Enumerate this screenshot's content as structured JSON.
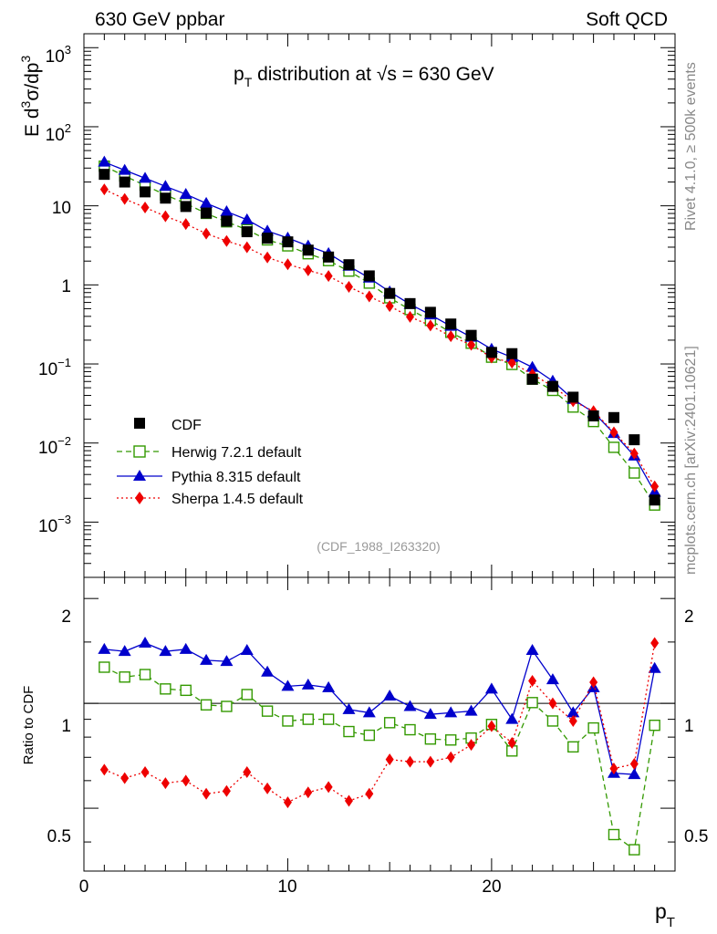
{
  "header": {
    "left": "630 GeV ppbar",
    "right": "Soft QCD"
  },
  "side_labels": {
    "rivet": "Rivet 4.1.0, ≥ 500k events",
    "mcplots": "mcplots.cern.ch [arXiv:2401.10621]"
  },
  "analysis_id": "(CDF_1988_I263320)",
  "colors": {
    "cdf": "#000000",
    "herwig": "#339900",
    "pythia": "#0000cc",
    "sherpa": "#ee0000"
  },
  "chart_data": {
    "type": "line",
    "title": {
      "prefix": "p",
      "sub": "T",
      "rest": " distribution at ",
      "sqrt": "√",
      "s_eq": "s = 630 GeV"
    },
    "xlabel": {
      "main": "p",
      "sub": "T"
    },
    "ylabel": {
      "main": "E  d",
      "sup1": "3",
      "mid": "σ/dp",
      "sup2": "3"
    },
    "ratio_ylabel": "Ratio to CDF",
    "xlim": [
      0,
      29
    ],
    "ylim": [
      0.0002,
      1500
    ],
    "ratio_ylim": [
      0.33,
      2.3
    ],
    "x_ticks": [
      "0",
      "10",
      "20"
    ],
    "y_ticks": [
      {
        "base": "10",
        "exp": "3"
      },
      {
        "base": "10",
        "exp": "2"
      },
      {
        "base": "10",
        "exp": ""
      },
      {
        "base": "1",
        "exp": ""
      },
      {
        "base": "10",
        "exp": "−1"
      },
      {
        "base": "10",
        "exp": "−2"
      },
      {
        "base": "10",
        "exp": "−3"
      }
    ],
    "ratio_ticks": [
      "2",
      "1",
      "0.5"
    ],
    "x": [
      1,
      2,
      3,
      4,
      5,
      6,
      7,
      8,
      9,
      10,
      11,
      12,
      13,
      14,
      15,
      16,
      17,
      18,
      19,
      20,
      21,
      22,
      23,
      24,
      25,
      26,
      27,
      28
    ],
    "series": [
      {
        "name": "CDF",
        "label": "CDF",
        "key": "cdf",
        "marker": "square",
        "values": [
          25,
          20,
          15,
          12.5,
          9.8,
          8.1,
          6.4,
          4.7,
          3.9,
          3.5,
          2.75,
          2.25,
          1.8,
          1.3,
          0.78,
          0.58,
          0.45,
          0.32,
          0.23,
          0.14,
          0.135,
          0.064,
          0.052,
          0.038,
          0.022,
          0.021,
          0.011,
          0.0019
        ]
      },
      {
        "name": "Herwig",
        "label": "Herwig 7.2.1 default",
        "key": "herwig",
        "marker": "open-square",
        "dash": "6,4",
        "ratio": [
          1.27,
          1.19,
          1.21,
          1.1,
          1.09,
          0.99,
          0.98,
          1.06,
          0.95,
          0.89,
          0.9,
          0.9,
          0.83,
          0.81,
          0.88,
          0.84,
          0.79,
          0.785,
          0.795,
          0.87,
          0.73,
          1.005,
          0.89,
          0.75,
          0.85,
          0.42,
          0.38,
          0.865
        ]
      },
      {
        "name": "Pythia",
        "label": "Pythia 8.315 default",
        "key": "pythia",
        "marker": "triangle",
        "ratio": [
          1.43,
          1.41,
          1.49,
          1.41,
          1.43,
          1.33,
          1.32,
          1.42,
          1.23,
          1.12,
          1.13,
          1.11,
          0.96,
          0.94,
          1.05,
          0.98,
          0.93,
          0.94,
          0.95,
          1.1,
          0.9,
          1.42,
          1.17,
          0.94,
          1.11,
          0.63,
          0.625,
          1.26
        ]
      },
      {
        "name": "Sherpa",
        "label": "Sherpa 1.4.5 default",
        "key": "sherpa",
        "marker": "diamond",
        "dash": "2,3",
        "ratio": [
          0.645,
          0.61,
          0.635,
          0.59,
          0.6,
          0.55,
          0.56,
          0.635,
          0.57,
          0.52,
          0.555,
          0.575,
          0.525,
          0.55,
          0.69,
          0.68,
          0.68,
          0.7,
          0.76,
          0.86,
          0.77,
          1.16,
          1.0,
          0.89,
          1.15,
          0.65,
          0.67,
          1.49
        ]
      }
    ]
  }
}
